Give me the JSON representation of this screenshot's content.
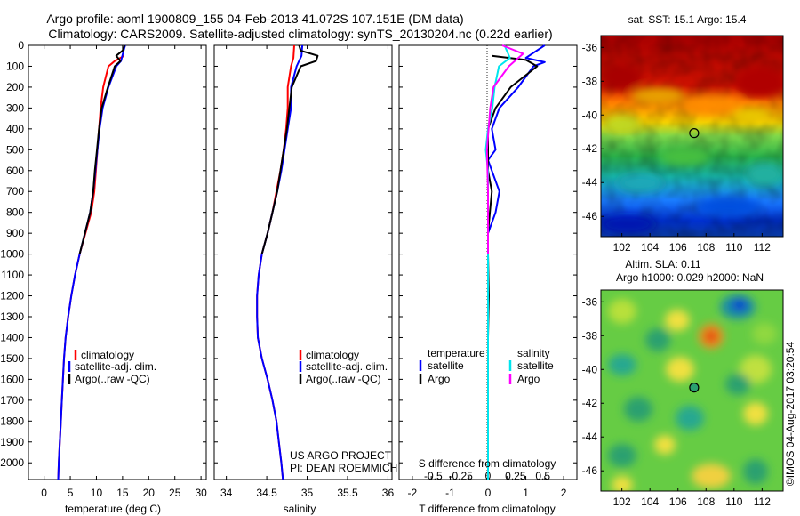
{
  "titles": {
    "line1": "Argo profile: aoml 1900809_155 04-Feb-2013 41.072S 107.151E (DM data)",
    "line2": "Climatology: CARS2009. Satellite-adjusted climatology: synTS_20130204.nc (0.22d earlier)",
    "sst_title": "sat. SST: 15.1 Argo: 15.4",
    "sla_title1": "Altim. SLA: 0.11",
    "sla_title2": "Argo h1000: 0.029 h2000: NaN",
    "timestamp": "©IMOS 04-Aug-2017 03:20:54"
  },
  "colors": {
    "clim": "#ff0000",
    "sat": "#0000ff",
    "argo": "#000000",
    "sat_s": "#00e5ee",
    "argo_s": "#ff00ff"
  },
  "depth_ticks": [
    "0",
    "100",
    "200",
    "300",
    "400",
    "500",
    "600",
    "700",
    "800",
    "900",
    "1000",
    "1100",
    "1200",
    "1300",
    "1400",
    "1500",
    "1600",
    "1700",
    "1800",
    "1900",
    "2000"
  ],
  "temperature_panel": {
    "xlabel": "temperature (deg C)",
    "xticks": [
      "0",
      "5",
      "10",
      "15",
      "20",
      "25",
      "30"
    ],
    "xlim": [
      -3,
      31
    ],
    "legend": [
      "climatology",
      "satellite-adj. clim.",
      "Argo(..raw -QC)"
    ]
  },
  "salinity_panel": {
    "xlabel": "salinity",
    "xticks": [
      "34",
      "34.5",
      "35",
      "35.5",
      "36"
    ],
    "xlim": [
      33.85,
      36.05
    ],
    "legend": [
      "climatology",
      "satellite-adj. clim.",
      "Argo(..raw -QC)"
    ],
    "notes": [
      "US ARGO PROJECT",
      "PI: DEAN ROEMMICH"
    ]
  },
  "difference_panel": {
    "xlabel": "T difference from climatology",
    "top_label": "S difference from climatology",
    "t_ticks": [
      "-2",
      "-1.5",
      "-1",
      "-0.5",
      "0",
      "0.5",
      "1",
      "1.5",
      "2"
    ],
    "s_ticks": [
      "-0.5",
      "-0.25",
      "0",
      "0.25",
      "0.5"
    ],
    "legend_temperature": [
      "temperature",
      "satellite",
      "Argo"
    ],
    "legend_salinity": [
      "salinity",
      "satellite",
      "Argo"
    ]
  },
  "map_panels": {
    "lon_ticks": [
      "102",
      "104",
      "106",
      "108",
      "110",
      "112"
    ],
    "lat_ticks": [
      "-36",
      "-38",
      "-40",
      "-42",
      "-44",
      "-46"
    ],
    "lon_range": [
      100.5,
      113.5
    ],
    "lat_range": [
      -47.2,
      -35.3
    ],
    "argo_position": {
      "lon": 107.151,
      "lat": -41.072
    }
  },
  "chart_data": [
    {
      "type": "line",
      "title": "",
      "xlabel": "temperature (deg C)",
      "ylabel": "",
      "xlim": [
        -3,
        31
      ],
      "ylim": [
        2080,
        0
      ],
      "series": [
        {
          "name": "climatology",
          "color": "#ff0000",
          "points": [
            [
              15.3,
              50
            ],
            [
              13.5,
              75
            ],
            [
              12.3,
              100
            ],
            [
              11.3,
              200
            ],
            [
              10.8,
              300
            ],
            [
              10.5,
              400
            ],
            [
              10.2,
              500
            ],
            [
              9.9,
              600
            ],
            [
              9.6,
              700
            ],
            [
              9.0,
              800
            ],
            [
              7.9,
              900
            ],
            [
              6.8,
              1000
            ],
            [
              5.9,
              1100
            ],
            [
              5.2,
              1200
            ],
            [
              4.6,
              1300
            ],
            [
              4.1,
              1400
            ],
            [
              3.8,
              1500
            ],
            [
              3.6,
              1600
            ],
            [
              3.4,
              1700
            ],
            [
              3.2,
              1800
            ],
            [
              3.0,
              1900
            ],
            [
              2.8,
              2000
            ],
            [
              2.7,
              2080
            ]
          ]
        },
        {
          "name": "satellite-adj. clim.",
          "color": "#0000ff",
          "points": [
            [
              15.5,
              0
            ],
            [
              15.2,
              25
            ],
            [
              14.7,
              75
            ],
            [
              13.8,
              100
            ],
            [
              12.3,
              200
            ],
            [
              11.2,
              300
            ],
            [
              10.6,
              400
            ],
            [
              10.2,
              500
            ],
            [
              9.8,
              600
            ],
            [
              9.4,
              700
            ],
            [
              8.8,
              800
            ],
            [
              7.8,
              900
            ],
            [
              6.8,
              1000
            ],
            [
              5.9,
              1100
            ],
            [
              5.2,
              1200
            ],
            [
              4.6,
              1300
            ],
            [
              4.1,
              1400
            ],
            [
              3.8,
              1500
            ],
            [
              3.6,
              1600
            ],
            [
              3.4,
              1700
            ],
            [
              3.2,
              1800
            ],
            [
              3.0,
              1900
            ],
            [
              2.8,
              2000
            ],
            [
              2.7,
              2080
            ]
          ]
        },
        {
          "name": "Argo(..raw -QC)",
          "color": "#000000",
          "points": [
            [
              15.4,
              0
            ],
            [
              15.0,
              25
            ],
            [
              13.8,
              50
            ],
            [
              14.6,
              75
            ],
            [
              13.5,
              100
            ],
            [
              12.2,
              200
            ],
            [
              11.0,
              300
            ],
            [
              10.5,
              400
            ],
            [
              10.1,
              500
            ],
            [
              9.7,
              600
            ],
            [
              9.4,
              700
            ],
            [
              8.8,
              800
            ],
            [
              7.8,
              900
            ],
            [
              6.8,
              1000
            ]
          ]
        }
      ],
      "legend": [
        "climatology",
        "satellite-adj. clim.",
        "Argo(..raw -QC)"
      ]
    },
    {
      "type": "line",
      "title": "",
      "xlabel": "salinity",
      "ylabel": "",
      "xlim": [
        33.85,
        36.05
      ],
      "ylim": [
        2080,
        0
      ],
      "series": [
        {
          "name": "climatology",
          "color": "#ff0000",
          "points": [
            [
              34.84,
              0
            ],
            [
              34.83,
              60
            ],
            [
              34.8,
              100
            ],
            [
              34.76,
              200
            ],
            [
              34.76,
              300
            ],
            [
              34.74,
              400
            ],
            [
              34.71,
              500
            ],
            [
              34.67,
              600
            ],
            [
              34.62,
              700
            ],
            [
              34.57,
              800
            ],
            [
              34.51,
              900
            ],
            [
              34.44,
              1000
            ],
            [
              34.4,
              1100
            ],
            [
              34.38,
              1200
            ],
            [
              34.38,
              1300
            ],
            [
              34.39,
              1400
            ],
            [
              34.44,
              1500
            ],
            [
              34.51,
              1600
            ],
            [
              34.57,
              1700
            ],
            [
              34.62,
              1800
            ],
            [
              34.65,
              1900
            ],
            [
              34.68,
              2000
            ],
            [
              34.7,
              2080
            ]
          ]
        },
        {
          "name": "satellite-adj. clim.",
          "color": "#0000ff",
          "points": [
            [
              34.94,
              0
            ],
            [
              34.93,
              50
            ],
            [
              34.87,
              100
            ],
            [
              34.8,
              200
            ],
            [
              34.8,
              300
            ],
            [
              34.76,
              400
            ],
            [
              34.72,
              500
            ],
            [
              34.68,
              600
            ],
            [
              34.63,
              700
            ],
            [
              34.57,
              800
            ],
            [
              34.51,
              900
            ],
            [
              34.44,
              1000
            ],
            [
              34.4,
              1100
            ],
            [
              34.38,
              1200
            ],
            [
              34.38,
              1300
            ],
            [
              34.39,
              1400
            ],
            [
              34.44,
              1500
            ],
            [
              34.51,
              1600
            ],
            [
              34.57,
              1700
            ],
            [
              34.62,
              1800
            ],
            [
              34.65,
              1900
            ],
            [
              34.68,
              2000
            ],
            [
              34.7,
              2080
            ]
          ]
        },
        {
          "name": "Argo(..raw -QC)",
          "color": "#000000",
          "points": [
            [
              34.9,
              0
            ],
            [
              34.92,
              25
            ],
            [
              35.13,
              50
            ],
            [
              35.11,
              75
            ],
            [
              34.92,
              100
            ],
            [
              34.81,
              200
            ],
            [
              34.78,
              300
            ],
            [
              34.75,
              400
            ],
            [
              34.71,
              500
            ],
            [
              34.67,
              600
            ],
            [
              34.63,
              700
            ],
            [
              34.57,
              800
            ],
            [
              34.51,
              900
            ],
            [
              34.44,
              1000
            ]
          ]
        }
      ],
      "legend": [
        "climatology",
        "satellite-adj. clim.",
        "Argo(..raw -QC)"
      ]
    },
    {
      "type": "line",
      "title": "",
      "xlabel": "T difference from climatology",
      "ylabel": "",
      "xlim": [
        -2.35,
        2.35
      ],
      "ylim": [
        2080,
        0
      ],
      "series": [
        {
          "name": "satellite",
          "quantity": "temperature",
          "color": "#0000ff",
          "points": [
            [
              1.5,
              0
            ],
            [
              1.0,
              60
            ],
            [
              1.5,
              80
            ],
            [
              1.2,
              100
            ],
            [
              0.8,
              200
            ],
            [
              0.3,
              300
            ],
            [
              0.1,
              400
            ],
            [
              0.2,
              500
            ],
            [
              0.0,
              550
            ],
            [
              0.1,
              600
            ],
            [
              0.3,
              700
            ],
            [
              0.2,
              800
            ],
            [
              0.0,
              900
            ],
            [
              0.0,
              1000
            ],
            [
              0.0,
              1200
            ],
            [
              0.0,
              1600
            ],
            [
              0.0,
              2000
            ],
            [
              0.0,
              2080
            ]
          ]
        },
        {
          "name": "Argo",
          "quantity": "temperature",
          "color": "#000000",
          "points": [
            [
              0.1,
              50
            ],
            [
              1.0,
              70
            ],
            [
              1.3,
              100
            ],
            [
              0.6,
              200
            ],
            [
              0.2,
              300
            ],
            [
              0.0,
              400
            ],
            [
              0.0,
              600
            ],
            [
              0.1,
              700
            ],
            [
              0.05,
              800
            ],
            [
              0.0,
              900
            ],
            [
              0.0,
              1000
            ],
            [
              0.02,
              1200
            ],
            [
              0.0,
              1400
            ],
            [
              0.0,
              1800
            ]
          ]
        },
        {
          "name": "satellite",
          "quantity": "salinity",
          "color": "#00e5ee",
          "points": [
            [
              0.15,
              0
            ],
            [
              0.2,
              60
            ],
            [
              0.1,
              100
            ],
            [
              0.06,
              200
            ],
            [
              0.04,
              300
            ],
            [
              0.0,
              400
            ],
            [
              -0.02,
              500
            ],
            [
              0.0,
              600
            ],
            [
              0.0,
              1000
            ],
            [
              0.0,
              1500
            ],
            [
              0.0,
              2080
            ]
          ]
        },
        {
          "name": "Argo",
          "quantity": "salinity",
          "color": "#ff00ff",
          "points": [
            [
              0.13,
              0
            ],
            [
              0.32,
              40
            ],
            [
              0.19,
              100
            ],
            [
              0.05,
              200
            ],
            [
              0.02,
              300
            ],
            [
              -0.01,
              500
            ],
            [
              0.0,
              700
            ],
            [
              0.0,
              1000
            ]
          ]
        }
      ],
      "legend": [
        "satellite",
        "Argo"
      ]
    }
  ]
}
